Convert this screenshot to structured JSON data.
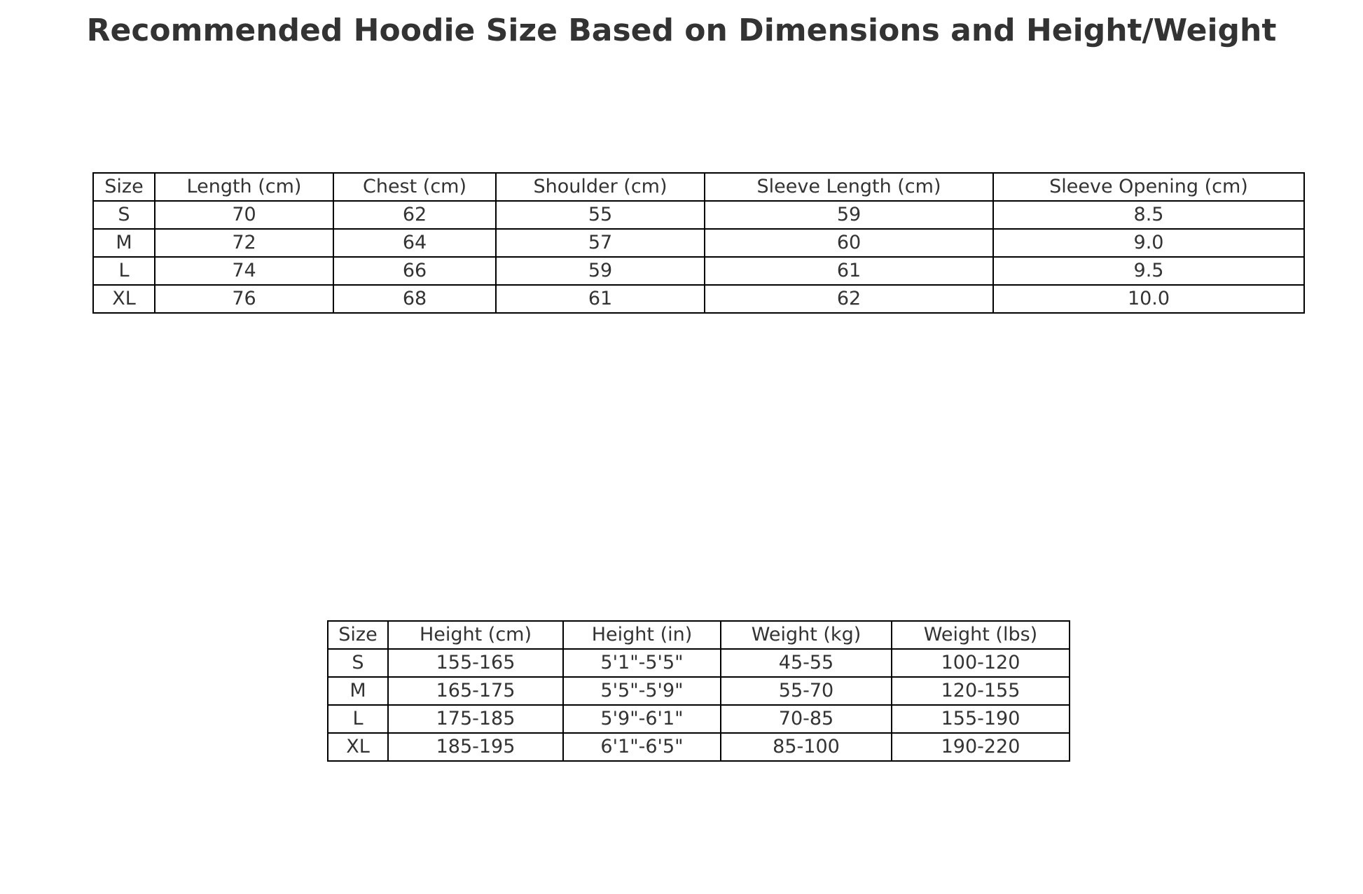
{
  "chart_data": [
    {
      "type": "table",
      "title": "Recommended Hoodie Size Based on Dimensions and Height/Weight",
      "columns": [
        "Size",
        "Length (cm)",
        "Chest (cm)",
        "Shoulder (cm)",
        "Sleeve Length (cm)",
        "Sleeve Opening (cm)"
      ],
      "rows": [
        [
          "S",
          "70",
          "62",
          "55",
          "59",
          "8.5"
        ],
        [
          "M",
          "72",
          "64",
          "57",
          "60",
          "9.0"
        ],
        [
          "L",
          "74",
          "66",
          "59",
          "61",
          "9.5"
        ],
        [
          "XL",
          "76",
          "68",
          "61",
          "62",
          "10.0"
        ]
      ]
    },
    {
      "type": "table",
      "columns": [
        "Size",
        "Height (cm)",
        "Height (in)",
        "Weight (kg)",
        "Weight (lbs)"
      ],
      "rows": [
        [
          "S",
          "155-165",
          "5'1\"-5'5\"",
          "45-55",
          "100-120"
        ],
        [
          "M",
          "165-175",
          "5'5\"-5'9\"",
          "55-70",
          "120-155"
        ],
        [
          "L",
          "175-185",
          "5'9\"-6'1\"",
          "70-85",
          "155-190"
        ],
        [
          "XL",
          "185-195",
          "6'1\"-6'5\"",
          "85-100",
          "190-220"
        ]
      ]
    }
  ]
}
